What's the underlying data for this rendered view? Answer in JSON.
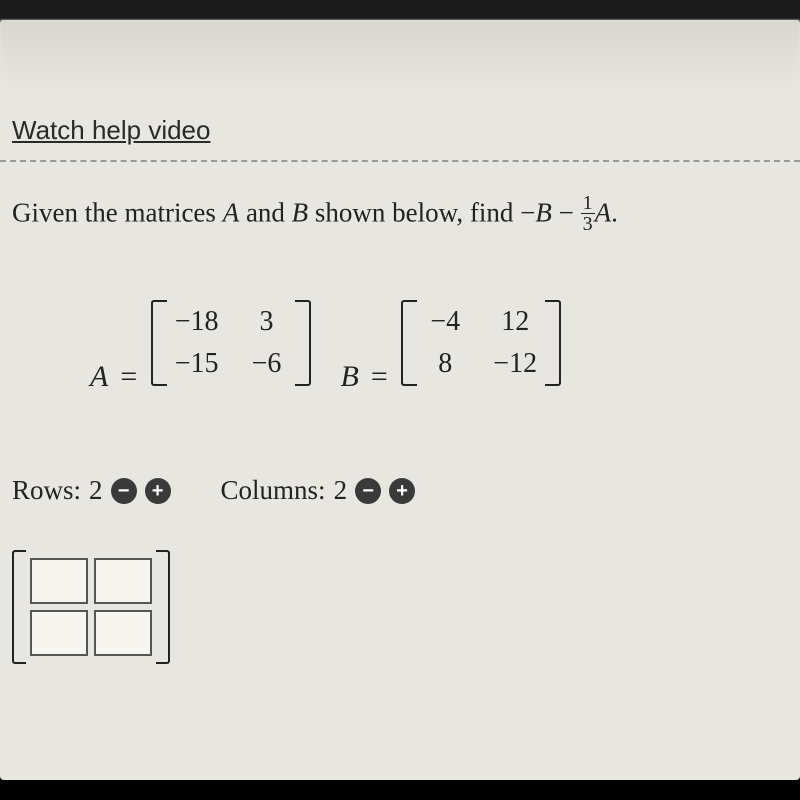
{
  "help_link": "Watch help video",
  "problem": {
    "prefix": "Given the matrices ",
    "varA": "A",
    "mid1": " and ",
    "varB": "B",
    "mid2": " shown below, find ",
    "expr_minus": "−",
    "expr_B": "B",
    "expr_minus2": " − ",
    "frac_num": "1",
    "frac_den": "3",
    "expr_A": "A",
    "period": "."
  },
  "matrixA": {
    "label": "A",
    "eq": "=",
    "cells": [
      "−18",
      "3",
      "−15",
      "−6"
    ]
  },
  "matrixB": {
    "label": "B",
    "eq": "=",
    "cells": [
      "−4",
      "12",
      "8",
      "−12"
    ]
  },
  "controls": {
    "rows_label": "Rows: ",
    "rows_value": "2",
    "cols_label": "Columns: ",
    "cols_value": "2",
    "minus": "−",
    "plus": "+"
  }
}
